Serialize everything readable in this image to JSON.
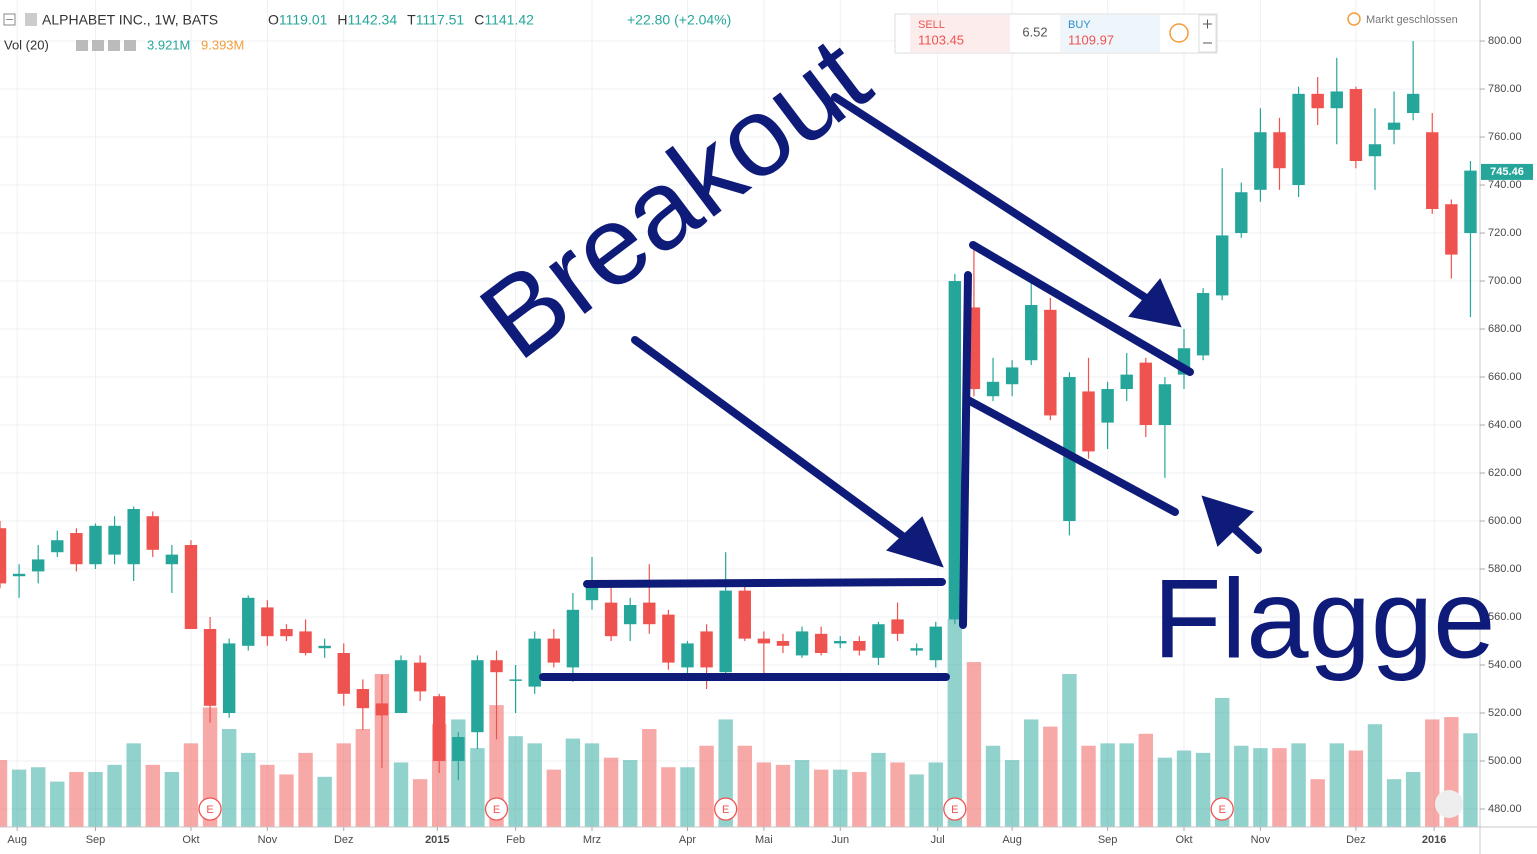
{
  "chart_data": {
    "type": "candlestick",
    "symbol": "ALPHABET INC., 1W, BATS",
    "ohlc_header": [
      {
        "key": "O",
        "value": 1119.01
      },
      {
        "key": "H",
        "value": 1142.34
      },
      {
        "key": "T",
        "value": 1117.51
      },
      {
        "key": "C",
        "value": 1141.42
      }
    ],
    "change": "+22.80 (+2.04%)",
    "volume_header": {
      "name": "Vol (20)",
      "value": "3.921M",
      "average": "9.393M"
    },
    "trade_box": {
      "sell_label": "SELL",
      "sell": 1103.45,
      "spread": 6.52,
      "buy_label": "BUY",
      "buy": 1109.97
    },
    "status": "Markt geschlossen",
    "last_price": 745.46,
    "annotations": [
      "Breakout",
      "Flagge"
    ],
    "up_color": "#26a69a",
    "down_color": "#ef5350",
    "open": [
      597,
      577,
      579,
      587,
      595,
      582,
      586,
      582,
      602,
      582,
      590,
      555,
      520,
      548,
      564,
      555,
      554,
      547,
      545,
      530,
      524,
      520,
      541,
      527,
      500,
      512,
      542,
      534,
      531,
      551,
      539,
      567,
      566,
      557,
      566,
      561,
      539,
      554,
      537,
      571,
      551,
      550,
      544,
      553,
      549,
      550,
      543,
      559,
      546,
      542,
      559,
      689,
      652,
      657,
      667,
      688,
      600,
      654,
      641,
      655,
      666,
      640,
      661,
      669,
      694,
      720,
      738,
      762,
      740,
      778,
      772,
      780,
      752,
      763,
      770,
      762,
      732,
      720
    ],
    "high": [
      600,
      582,
      590,
      596,
      597,
      599,
      602,
      606,
      604,
      590,
      592,
      560,
      551,
      569,
      567,
      557,
      559,
      551,
      549,
      534,
      536,
      544,
      544,
      528,
      512,
      544,
      546,
      540,
      554,
      555,
      570,
      585,
      573,
      568,
      582,
      563,
      550,
      557,
      587,
      573,
      554,
      553,
      556,
      556,
      552,
      552,
      558,
      566,
      549,
      558,
      703,
      713,
      668,
      667,
      700,
      693,
      662,
      668,
      658,
      670,
      668,
      660,
      680,
      697,
      747,
      741,
      772,
      768,
      781,
      785,
      793,
      781,
      772,
      779,
      800,
      770,
      734,
      750
    ],
    "low": [
      572,
      568,
      574,
      585,
      579,
      580,
      582,
      575,
      585,
      570,
      555,
      516,
      518,
      546,
      548,
      550,
      544,
      543,
      523,
      513,
      497,
      520,
      525,
      495,
      492,
      505,
      509,
      520,
      528,
      539,
      533,
      563,
      550,
      550,
      553,
      538,
      535,
      530,
      535,
      550,
      535,
      545,
      543,
      544,
      547,
      544,
      540,
      550,
      544,
      539,
      557,
      652,
      650,
      652,
      665,
      642,
      594,
      626,
      630,
      650,
      635,
      618,
      655,
      667,
      692,
      718,
      733,
      738,
      735,
      765,
      757,
      747,
      738,
      757,
      767,
      728,
      701,
      685
    ],
    "close": [
      574,
      578,
      584,
      592,
      582,
      598,
      598,
      605,
      588,
      586,
      555,
      523,
      549,
      568,
      552,
      552,
      545,
      548,
      528,
      522,
      519,
      542,
      529,
      500,
      510,
      542,
      537,
      534,
      551,
      541,
      563,
      573,
      552,
      565,
      557,
      541,
      549,
      539,
      571,
      551,
      549,
      548,
      554,
      545,
      550,
      546,
      557,
      553,
      547,
      556,
      700,
      655,
      658,
      664,
      690,
      644,
      660,
      629,
      655,
      661,
      640,
      657,
      672,
      695,
      719,
      737,
      762,
      747,
      778,
      772,
      779,
      750,
      757,
      766,
      778,
      730,
      711,
      746
    ],
    "volume": [
      2.8,
      2.4,
      2.5,
      1.9,
      2.3,
      2.3,
      2.6,
      3.5,
      2.6,
      2.3,
      3.5,
      5.0,
      4.1,
      3.1,
      2.6,
      2.2,
      3.1,
      2.1,
      3.5,
      4.1,
      6.4,
      2.7,
      2.0,
      4.3,
      4.5,
      3.3,
      5.1,
      3.8,
      3.5,
      2.4,
      3.7,
      3.5,
      2.9,
      2.8,
      4.1,
      2.5,
      2.5,
      3.4,
      4.5,
      3.4,
      2.7,
      2.6,
      2.8,
      2.4,
      2.4,
      2.3,
      3.1,
      2.7,
      2.2,
      2.7,
      8.7,
      6.9,
      3.4,
      2.8,
      4.5,
      4.2,
      6.4,
      3.4,
      3.5,
      3.5,
      3.9,
      2.9,
      3.2,
      3.1,
      5.4,
      3.4,
      3.3,
      3.3,
      3.5,
      2.0,
      3.5,
      3.2,
      4.3,
      2.0,
      2.3,
      4.5,
      4.6,
      3.921
    ],
    "events": [
      {
        "x": 11,
        "label": "E"
      },
      {
        "x": 26,
        "label": "E"
      },
      {
        "x": 38,
        "label": "E"
      },
      {
        "x": 50,
        "label": "E"
      },
      {
        "x": 64,
        "label": "E"
      }
    ],
    "xlim": [
      0,
      77.5
    ],
    "xticks": [
      {
        "value": 0.9,
        "label": "Aug"
      },
      {
        "value": 5.0,
        "label": "Sep"
      },
      {
        "value": 10.0,
        "label": "Okt"
      },
      {
        "value": 14.0,
        "label": "Nov"
      },
      {
        "value": 18.0,
        "label": "Dez"
      },
      {
        "value": 22.9,
        "label": "2015"
      },
      {
        "value": 27.0,
        "label": "Feb"
      },
      {
        "value": 31.0,
        "label": "Mrz"
      },
      {
        "value": 36.0,
        "label": "Apr"
      },
      {
        "value": 40.0,
        "label": "Mai"
      },
      {
        "value": 44.0,
        "label": "Jun"
      },
      {
        "value": 49.1,
        "label": "Jul"
      },
      {
        "value": 53.0,
        "label": "Aug"
      },
      {
        "value": 58.0,
        "label": "Sep"
      },
      {
        "value": 62.0,
        "label": "Okt"
      },
      {
        "value": 66.0,
        "label": "Nov"
      },
      {
        "value": 71.0,
        "label": "Dez"
      },
      {
        "value": 75.1,
        "label": "2016"
      }
    ],
    "ylim": [
      472.5,
      817.1
    ],
    "yticks": [
      {
        "value": 480,
        "label": "480.00"
      },
      {
        "value": 500,
        "label": "500.00"
      },
      {
        "value": 520,
        "label": "520.00"
      },
      {
        "value": 540,
        "label": "540.00"
      },
      {
        "value": 560,
        "label": "560.00"
      },
      {
        "value": 580,
        "label": "580.00"
      },
      {
        "value": 600,
        "label": "600.00"
      },
      {
        "value": 620,
        "label": "620.00"
      },
      {
        "value": 640,
        "label": "640.00"
      },
      {
        "value": 660,
        "label": "660.00"
      },
      {
        "value": 680,
        "label": "680.00"
      },
      {
        "value": 700,
        "label": "700.00"
      },
      {
        "value": 720,
        "label": "720.00"
      },
      {
        "value": 740,
        "label": "740.00"
      },
      {
        "value": 760,
        "label": "760.00"
      },
      {
        "value": 780,
        "label": "780.00"
      },
      {
        "value": 800,
        "label": "800.00"
      }
    ],
    "y2lim": [
      0,
      34.6
    ],
    "grid": true
  }
}
